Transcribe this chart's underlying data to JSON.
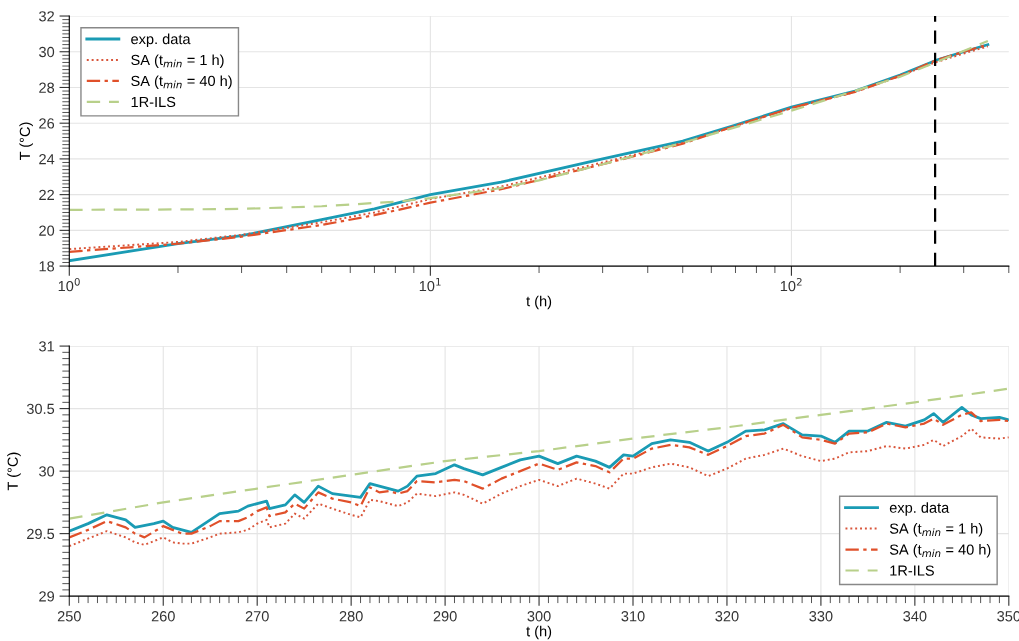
{
  "chart_data": [
    {
      "type": "line",
      "xlabel": "t (h)",
      "ylabel": "T (°C)",
      "log": "x",
      "xlim": [
        1,
        400
      ],
      "ylim": [
        18,
        32
      ],
      "xticks": [
        {
          "value": 1,
          "label": "10$^{0}$"
        },
        {
          "value": 10,
          "label": "10$^{1}$"
        },
        {
          "value": 100,
          "label": "10$^{2}$"
        }
      ],
      "yticks": [
        18,
        20,
        22,
        24,
        26,
        28,
        30,
        32
      ],
      "grid": true,
      "legend": "top left",
      "ref_lines": [
        {
          "axis": "x",
          "value": 250,
          "label": null,
          "color": "#000000",
          "line_style": "dashed"
        }
      ],
      "series": [
        {
          "name": "exp. data",
          "color": "#1a9bb4",
          "line_style": "solid",
          "x": [
            1,
            2,
            3,
            5,
            7,
            10,
            15.7,
            30,
            50,
            70,
            100,
            150,
            200,
            250,
            300,
            350
          ],
          "values": [
            18.3,
            19.25,
            19.7,
            20.6,
            21.2,
            22.0,
            22.7,
            24.0,
            25.0,
            25.9,
            26.9,
            27.8,
            28.7,
            29.5,
            30.0,
            30.4
          ]
        },
        {
          "name": "SA (t$_{min}$ = 1 h)",
          "color": "#d9553a",
          "line_style": "dotted",
          "x": [
            1,
            2,
            3,
            5,
            7,
            10,
            15.7,
            30,
            50,
            70,
            100,
            150,
            200,
            250,
            300,
            350
          ],
          "values": [
            18.95,
            19.35,
            19.75,
            20.45,
            21.0,
            21.75,
            22.45,
            23.8,
            24.9,
            25.85,
            26.85,
            27.75,
            28.65,
            29.4,
            29.9,
            30.3
          ]
        },
        {
          "name": "SA (t$_{min}$ = 40 h)",
          "color": "#e0502a",
          "line_style": "dashdot",
          "x": [
            1,
            2,
            3,
            5,
            7,
            10,
            15.7,
            30,
            50,
            70,
            100,
            150,
            200,
            250,
            300,
            350
          ],
          "values": [
            18.8,
            19.25,
            19.65,
            20.3,
            20.85,
            21.55,
            22.3,
            23.7,
            24.85,
            25.85,
            26.85,
            27.75,
            28.65,
            29.5,
            30.0,
            30.4
          ]
        },
        {
          "name": "1R-ILS",
          "color": "#b8d08a",
          "line_style": "dashed",
          "x": [
            1,
            2,
            3,
            5,
            8,
            10,
            15,
            20,
            30,
            50,
            100,
            200,
            350
          ],
          "values": [
            21.15,
            21.17,
            21.2,
            21.35,
            21.6,
            21.8,
            22.3,
            22.8,
            23.7,
            24.9,
            26.7,
            28.6,
            30.6
          ]
        }
      ]
    },
    {
      "type": "line",
      "xlabel": "t (h)",
      "ylabel": "T (°C)",
      "xlim": [
        250,
        350
      ],
      "ylim": [
        29,
        31
      ],
      "xticks": [
        250,
        260,
        270,
        280,
        290,
        300,
        310,
        320,
        330,
        340,
        350
      ],
      "yticks": [
        29,
        29.5,
        30,
        30.5,
        31
      ],
      "grid": true,
      "legend": "bottom right",
      "series": [
        {
          "name": "exp. data",
          "color": "#1a9bb4",
          "line_style": "solid",
          "x": [
            250,
            252,
            254,
            256,
            257,
            259,
            260,
            261,
            262,
            263,
            265,
            266,
            268,
            269,
            270,
            271,
            271.3,
            273,
            274,
            275,
            276.5,
            278,
            280,
            281,
            282,
            283,
            284,
            285,
            286,
            287,
            289,
            291,
            292,
            294,
            296,
            298,
            300,
            302,
            304,
            306,
            307.5,
            309,
            310,
            312,
            314,
            316,
            318,
            320,
            322,
            324,
            326,
            328,
            330,
            331.5,
            333,
            335,
            337,
            339,
            341,
            342,
            343,
            345,
            346,
            347,
            349,
            350
          ],
          "values": [
            29.52,
            29.58,
            29.65,
            29.61,
            29.55,
            29.58,
            29.6,
            29.55,
            29.53,
            29.51,
            29.61,
            29.66,
            29.68,
            29.72,
            29.74,
            29.76,
            29.7,
            29.73,
            29.81,
            29.75,
            29.88,
            29.82,
            29.8,
            29.79,
            29.9,
            29.88,
            29.86,
            29.84,
            29.88,
            29.96,
            29.98,
            30.05,
            30.02,
            29.97,
            30.03,
            30.09,
            30.12,
            30.06,
            30.12,
            30.08,
            30.03,
            30.13,
            30.12,
            30.22,
            30.25,
            30.23,
            30.16,
            30.23,
            30.32,
            30.33,
            30.38,
            30.29,
            30.28,
            30.23,
            30.32,
            30.32,
            30.39,
            30.36,
            30.41,
            30.46,
            30.39,
            30.51,
            30.45,
            30.42,
            30.43,
            30.41
          ]
        },
        {
          "name": "SA (t$_{min}$ = 1 h)",
          "color": "#d9553a",
          "line_style": "dotted",
          "x": [
            250,
            252,
            254,
            256,
            257,
            258,
            260,
            261,
            262,
            263,
            265,
            266,
            268,
            269,
            270,
            271,
            271.3,
            273,
            274,
            275,
            276.5,
            278,
            280,
            281,
            282,
            283,
            284,
            285,
            286,
            287,
            289,
            291,
            292,
            294,
            296,
            298,
            300,
            302,
            304,
            306,
            307.5,
            309,
            310,
            312,
            314,
            316,
            318,
            320,
            322,
            324,
            326,
            328,
            330,
            331.5,
            333,
            335,
            337,
            339,
            341,
            342,
            343,
            345,
            346,
            347,
            349,
            350
          ],
          "values": [
            29.4,
            29.46,
            29.52,
            29.47,
            29.43,
            29.41,
            29.47,
            29.43,
            29.42,
            29.42,
            29.47,
            29.5,
            29.51,
            29.53,
            29.58,
            29.61,
            29.55,
            29.58,
            29.66,
            29.62,
            29.74,
            29.7,
            29.65,
            29.63,
            29.77,
            29.76,
            29.74,
            29.72,
            29.75,
            29.82,
            29.8,
            29.83,
            29.81,
            29.74,
            29.82,
            29.88,
            29.93,
            29.88,
            29.94,
            29.9,
            29.86,
            29.98,
            29.98,
            30.03,
            30.06,
            30.03,
            29.96,
            30.02,
            30.1,
            30.13,
            30.18,
            30.12,
            30.08,
            30.1,
            30.15,
            30.16,
            30.2,
            30.18,
            30.21,
            30.25,
            30.2,
            30.28,
            30.34,
            30.27,
            30.26,
            30.27
          ]
        },
        {
          "name": "SA (t$_{min}$ = 40 h)",
          "color": "#e0502a",
          "line_style": "dashdot",
          "x": [
            250,
            252,
            254,
            256,
            257,
            258,
            260,
            261,
            262,
            263,
            265,
            266,
            268,
            269,
            270,
            271,
            271.3,
            273,
            274,
            275,
            276.5,
            278,
            280,
            281,
            282,
            283,
            284,
            285,
            286,
            287,
            289,
            291,
            292,
            294,
            296,
            298,
            300,
            302,
            304,
            306,
            307.5,
            309,
            310,
            312,
            314,
            316,
            318,
            320,
            322,
            324,
            326,
            328,
            330,
            331.5,
            333,
            335,
            337,
            339,
            341,
            342,
            343,
            345,
            346,
            347,
            349,
            350
          ],
          "values": [
            29.47,
            29.53,
            29.6,
            29.55,
            29.5,
            29.47,
            29.56,
            29.53,
            29.5,
            29.5,
            29.56,
            29.6,
            29.6,
            29.63,
            29.68,
            29.71,
            29.64,
            29.67,
            29.74,
            29.7,
            29.83,
            29.78,
            29.75,
            29.72,
            29.87,
            29.83,
            29.84,
            29.82,
            29.84,
            29.92,
            29.91,
            29.93,
            29.92,
            29.86,
            29.94,
            30.0,
            30.06,
            30.01,
            30.07,
            30.04,
            29.99,
            30.1,
            30.1,
            30.18,
            30.21,
            30.19,
            30.13,
            30.2,
            30.28,
            30.3,
            30.37,
            30.27,
            30.25,
            30.22,
            30.3,
            30.31,
            30.38,
            30.35,
            30.38,
            30.42,
            30.37,
            30.45,
            30.47,
            30.4,
            30.41,
            30.4
          ]
        },
        {
          "name": "1R-ILS",
          "color": "#b8d08a",
          "line_style": "dashed",
          "x": [
            250,
            260,
            270,
            280,
            290,
            300,
            310,
            320,
            330,
            340,
            350
          ],
          "values": [
            29.62,
            29.75,
            29.86,
            29.97,
            30.08,
            30.16,
            30.26,
            30.35,
            30.45,
            30.55,
            30.66
          ]
        }
      ]
    }
  ]
}
